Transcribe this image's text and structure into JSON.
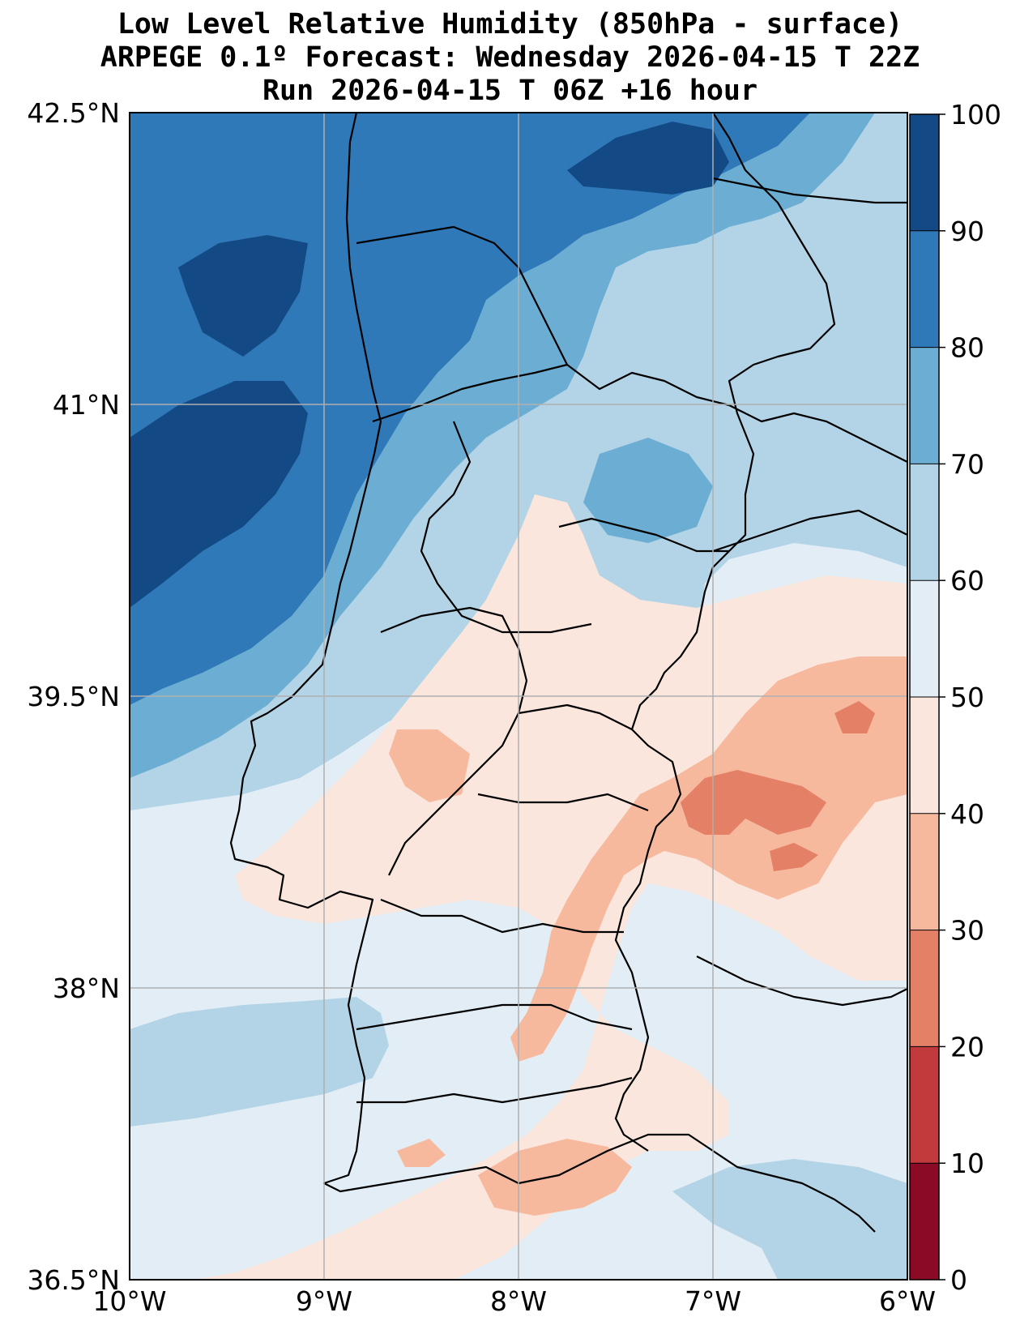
{
  "title": {
    "line1": "Low Level Relative Humidity (850hPa - surface)",
    "line2": "ARPEGE 0.1º Forecast: Wednesday 2026-04-15 T 22Z",
    "line3": "Run 2026-04-15 T 06Z +16 hour"
  },
  "map": {
    "lon_range": [
      -10,
      -6
    ],
    "lat_range": [
      36.5,
      42.5
    ],
    "grid": true,
    "x_ticks": [
      {
        "value": -10,
        "label": "10°W"
      },
      {
        "value": -9,
        "label": "9°W"
      },
      {
        "value": -8,
        "label": "8°W"
      },
      {
        "value": -7,
        "label": "7°W"
      },
      {
        "value": -6,
        "label": "6°W"
      }
    ],
    "y_ticks": [
      {
        "value": 36.5,
        "label": "36.5°N"
      },
      {
        "value": 38,
        "label": "38°N"
      },
      {
        "value": 39.5,
        "label": "39.5°N"
      },
      {
        "value": 41,
        "label": "41°N"
      },
      {
        "value": 42.5,
        "label": "42.5°N"
      }
    ]
  },
  "colorbar": {
    "levels": [
      {
        "from": 0,
        "to": 10,
        "color": "#8b0a26"
      },
      {
        "from": 10,
        "to": 20,
        "color": "#c13b3c"
      },
      {
        "from": 20,
        "to": 30,
        "color": "#e38066"
      },
      {
        "from": 30,
        "to": 40,
        "color": "#f7b99e"
      },
      {
        "from": 40,
        "to": 50,
        "color": "#fae6dc"
      },
      {
        "from": 50,
        "to": 60,
        "color": "#e3edf5"
      },
      {
        "from": 60,
        "to": 70,
        "color": "#b2d4e6"
      },
      {
        "from": 70,
        "to": 80,
        "color": "#6caed3"
      },
      {
        "from": 80,
        "to": 90,
        "color": "#3079b8"
      },
      {
        "from": 90,
        "to": 100,
        "color": "#134a85"
      }
    ],
    "tick_labels": [
      "0",
      "10",
      "20",
      "30",
      "40",
      "50",
      "60",
      "70",
      "80",
      "90",
      "100"
    ]
  }
}
